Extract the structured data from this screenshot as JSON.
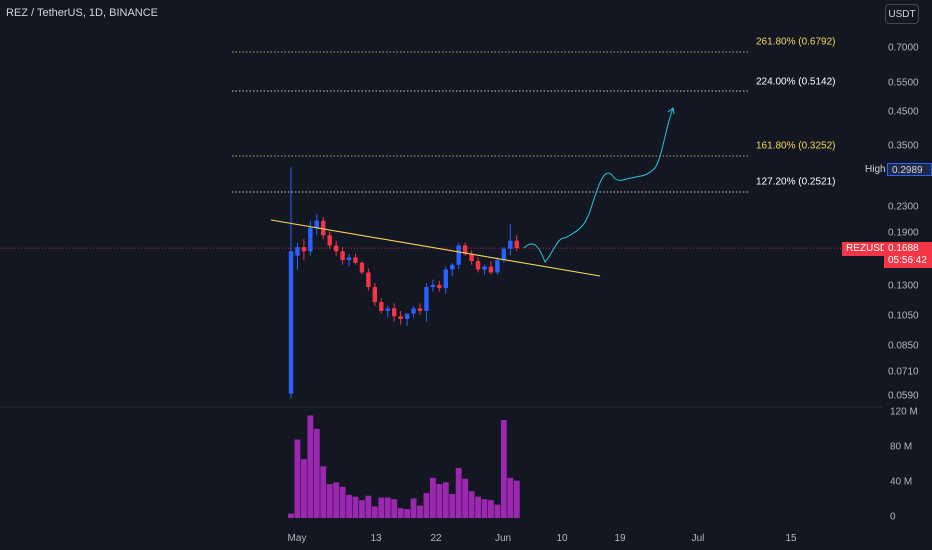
{
  "header": {
    "symbol_title": "REZ / TetherUS, 1D, BINANCE",
    "currency_button": "USDT"
  },
  "price_axis": {
    "labels": [
      "0.7000",
      "0.5500",
      "0.4500",
      "0.3500",
      "0.2300",
      "0.1900",
      "0.1300",
      "0.1050",
      "0.0850",
      "0.0710",
      "0.0590"
    ]
  },
  "volume_axis": {
    "labels": [
      "120 M",
      "80 M",
      "40 M",
      "0"
    ]
  },
  "time_axis": {
    "labels": [
      "May",
      "13",
      "22",
      "Jun",
      "10",
      "19",
      "Jul",
      "15"
    ]
  },
  "fib_levels": [
    {
      "label": "261.80% (0.6792)",
      "color": "#f7d75a"
    },
    {
      "label": "224.00% (0.5142)",
      "color": "#ffffff"
    },
    {
      "label": "161.80% (0.3252)",
      "color": "#f7d75a"
    },
    {
      "label": "127.20% (0.2521)",
      "color": "#ffffff"
    }
  ],
  "tags": {
    "high_name": "High",
    "high_value": "0.2989",
    "symbol": "REZUSDT",
    "last_price": "0.1688",
    "countdown": "05:56:42"
  },
  "colors": {
    "background": "#131722",
    "up": "#2962ff",
    "down": "#f23645",
    "volume": "#9c27b0",
    "trendline": "#f7d75a",
    "projection": "#26c6da"
  },
  "chart_data": {
    "type": "candlestick",
    "symbol": "REZUSDT",
    "interval": "1D",
    "exchange": "BINANCE",
    "scale": "log",
    "price_ticks": [
      0.7,
      0.55,
      0.45,
      0.35,
      0.23,
      0.19,
      0.13,
      0.105,
      0.085,
      0.071,
      0.059
    ],
    "candles": [
      {
        "o": 0.06,
        "h": 0.3,
        "l": 0.058,
        "c": 0.165,
        "v": 5
      },
      {
        "o": 0.16,
        "h": 0.175,
        "l": 0.145,
        "c": 0.17,
        "v": 88
      },
      {
        "o": 0.17,
        "h": 0.18,
        "l": 0.155,
        "c": 0.165,
        "v": 66
      },
      {
        "o": 0.165,
        "h": 0.205,
        "l": 0.16,
        "c": 0.195,
        "v": 115
      },
      {
        "o": 0.195,
        "h": 0.215,
        "l": 0.185,
        "c": 0.205,
        "v": 100
      },
      {
        "o": 0.205,
        "h": 0.21,
        "l": 0.18,
        "c": 0.185,
        "v": 58
      },
      {
        "o": 0.185,
        "h": 0.19,
        "l": 0.168,
        "c": 0.172,
        "v": 38
      },
      {
        "o": 0.172,
        "h": 0.178,
        "l": 0.16,
        "c": 0.165,
        "v": 40
      },
      {
        "o": 0.165,
        "h": 0.17,
        "l": 0.15,
        "c": 0.155,
        "v": 35
      },
      {
        "o": 0.155,
        "h": 0.162,
        "l": 0.148,
        "c": 0.158,
        "v": 26
      },
      {
        "o": 0.158,
        "h": 0.162,
        "l": 0.15,
        "c": 0.152,
        "v": 24
      },
      {
        "o": 0.152,
        "h": 0.154,
        "l": 0.14,
        "c": 0.142,
        "v": 20
      },
      {
        "o": 0.142,
        "h": 0.146,
        "l": 0.125,
        "c": 0.128,
        "v": 25
      },
      {
        "o": 0.128,
        "h": 0.132,
        "l": 0.112,
        "c": 0.115,
        "v": 13
      },
      {
        "o": 0.115,
        "h": 0.118,
        "l": 0.106,
        "c": 0.108,
        "v": 23
      },
      {
        "o": 0.108,
        "h": 0.112,
        "l": 0.103,
        "c": 0.11,
        "v": 23
      },
      {
        "o": 0.11,
        "h": 0.114,
        "l": 0.1,
        "c": 0.104,
        "v": 21
      },
      {
        "o": 0.104,
        "h": 0.108,
        "l": 0.098,
        "c": 0.102,
        "v": 11
      },
      {
        "o": 0.102,
        "h": 0.106,
        "l": 0.097,
        "c": 0.106,
        "v": 10
      },
      {
        "o": 0.106,
        "h": 0.112,
        "l": 0.103,
        "c": 0.11,
        "v": 22
      },
      {
        "o": 0.11,
        "h": 0.114,
        "l": 0.105,
        "c": 0.108,
        "v": 14
      },
      {
        "o": 0.108,
        "h": 0.132,
        "l": 0.1,
        "c": 0.128,
        "v": 28
      },
      {
        "o": 0.128,
        "h": 0.135,
        "l": 0.124,
        "c": 0.13,
        "v": 45
      },
      {
        "o": 0.13,
        "h": 0.134,
        "l": 0.124,
        "c": 0.127,
        "v": 38
      },
      {
        "o": 0.127,
        "h": 0.148,
        "l": 0.122,
        "c": 0.145,
        "v": 40
      },
      {
        "o": 0.145,
        "h": 0.152,
        "l": 0.138,
        "c": 0.15,
        "v": 27
      },
      {
        "o": 0.15,
        "h": 0.175,
        "l": 0.145,
        "c": 0.172,
        "v": 56
      },
      {
        "o": 0.172,
        "h": 0.176,
        "l": 0.16,
        "c": 0.162,
        "v": 44
      },
      {
        "o": 0.162,
        "h": 0.166,
        "l": 0.15,
        "c": 0.154,
        "v": 30
      },
      {
        "o": 0.154,
        "h": 0.158,
        "l": 0.142,
        "c": 0.145,
        "v": 24
      },
      {
        "o": 0.145,
        "h": 0.15,
        "l": 0.14,
        "c": 0.148,
        "v": 21
      },
      {
        "o": 0.148,
        "h": 0.154,
        "l": 0.14,
        "c": 0.142,
        "v": 20
      },
      {
        "o": 0.142,
        "h": 0.158,
        "l": 0.14,
        "c": 0.155,
        "v": 15
      },
      {
        "o": 0.155,
        "h": 0.17,
        "l": 0.152,
        "c": 0.168,
        "v": 110
      },
      {
        "o": 0.168,
        "h": 0.2,
        "l": 0.16,
        "c": 0.178,
        "v": 45
      },
      {
        "o": 0.178,
        "h": 0.185,
        "l": 0.165,
        "c": 0.1688,
        "v": 42
      }
    ],
    "volume_unit": "M",
    "volume_ticks": [
      0,
      40,
      80,
      120
    ],
    "high": 0.2989,
    "last": 0.1688
  }
}
